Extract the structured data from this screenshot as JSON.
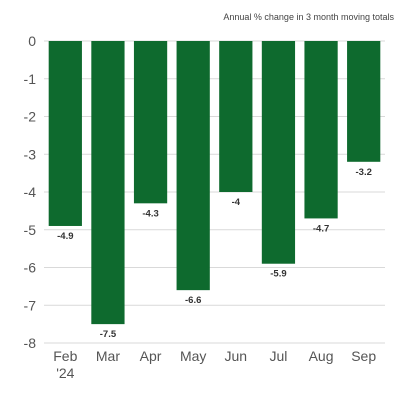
{
  "chart_data": {
    "type": "bar",
    "title": "",
    "subtitle": "Annual % change in 3 month moving totals",
    "xlabel": "",
    "ylabel": "",
    "categories": [
      "Feb",
      "Mar",
      "Apr",
      "May",
      "Jun",
      "Jul",
      "Aug",
      "Sep"
    ],
    "category_sublabels": [
      "'24",
      "",
      "",
      "",
      "",
      "",
      "",
      ""
    ],
    "values": [
      -4.9,
      -7.5,
      -4.3,
      -6.6,
      -4,
      -5.9,
      -4.7,
      -3.2
    ],
    "value_labels": [
      "-4.9",
      "-7.5",
      "-4.3",
      "-6.6",
      "-4",
      "-5.9",
      "-4.7",
      "-3.2"
    ],
    "ylim": [
      -8,
      0
    ],
    "yticks": [
      0,
      -1,
      -2,
      -3,
      -4,
      -5,
      -6,
      -7,
      -8
    ],
    "ytick_labels": [
      "0",
      "-1",
      "-2",
      "-3",
      "-4",
      "-5",
      "-6",
      "-7",
      "-8"
    ],
    "grid": true,
    "bar_color": "#0e6a2e"
  }
}
